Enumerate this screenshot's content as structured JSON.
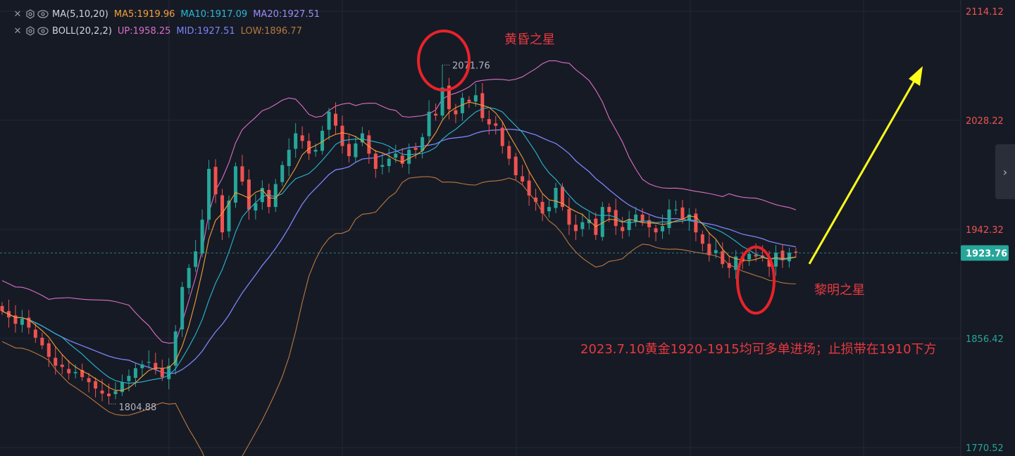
{
  "legend": {
    "ma_row": {
      "name": "MA(5,10,20)",
      "items": [
        {
          "label": "MA5:1919.96",
          "color": "#f59f37"
        },
        {
          "label": "MA10:1917.09",
          "color": "#27b9d0"
        },
        {
          "label": "MA20:1927.51",
          "color": "#9c8cf5"
        }
      ]
    },
    "boll_row": {
      "name": "BOLL(20,2,2)",
      "items": [
        {
          "label": "UP:1958.25",
          "color": "#d96fc5"
        },
        {
          "label": "MID:1927.51",
          "color": "#7d84f7"
        },
        {
          "label": "LOW:1896.77",
          "color": "#b97840"
        }
      ]
    }
  },
  "chart_data": {
    "type": "candlestick",
    "ylim": [
      1770.52,
      2114.12
    ],
    "y_ticks": [
      "2114.12",
      "2028.22",
      "1942.32",
      "1856.42",
      "1770.52"
    ],
    "current_price": 1923.76,
    "current_price_label": "1923.76",
    "high_marker": {
      "value": 2071.76,
      "label": "2071.76"
    },
    "low_marker": {
      "value": 1804.88,
      "label": "1804.88"
    },
    "colors": {
      "up": "#26a69a",
      "down": "#ef5350",
      "ma5": "#f59f37",
      "ma10": "#27b9d0",
      "ma20_mid": "#7d84f7",
      "boll_up": "#d96fc5",
      "boll_low": "#b97840"
    },
    "annotations": {
      "evening_star": "黄昏之星",
      "morning_star": "黎明之星",
      "strategy": "2023.7.10黄金1920-1915均可多单进场；止损带在1910下方"
    },
    "closes": [
      1878,
      1873,
      1868,
      1872,
      1865,
      1857,
      1851,
      1842,
      1835,
      1834,
      1829,
      1830,
      1826,
      1822,
      1817,
      1813,
      1811,
      1815,
      1822,
      1827,
      1833,
      1836,
      1838,
      1832,
      1826,
      1835,
      1862,
      1897,
      1912,
      1925,
      1950,
      1990,
      1970,
      1940,
      1965,
      1992,
      1980,
      1958,
      1963,
      1975,
      1960,
      1978,
      1993,
      2005,
      2018,
      2012,
      2002,
      2005,
      2020,
      2035,
      2024,
      2008,
      2000,
      2010,
      2018,
      2002,
      1990,
      1993,
      1998,
      2002,
      1994,
      2005,
      2005,
      2015,
      2035,
      2032,
      2054,
      2037,
      2033,
      2046,
      2043,
      2048,
      2030,
      2025,
      2024,
      2008,
      1998,
      1985,
      1980,
      1969,
      1964,
      1955,
      1960,
      1975,
      1960,
      1946,
      1941,
      1948,
      1950,
      1938,
      1960,
      1956,
      1945,
      1941,
      1950,
      1954,
      1948,
      1944,
      1940,
      1945,
      1958,
      1958,
      1950,
      1954,
      1940,
      1931,
      1922,
      1926,
      1915,
      1912,
      1921,
      1917,
      1923,
      1921,
      1920,
      1913,
      1924,
      1918,
      1924,
      1924
    ]
  }
}
